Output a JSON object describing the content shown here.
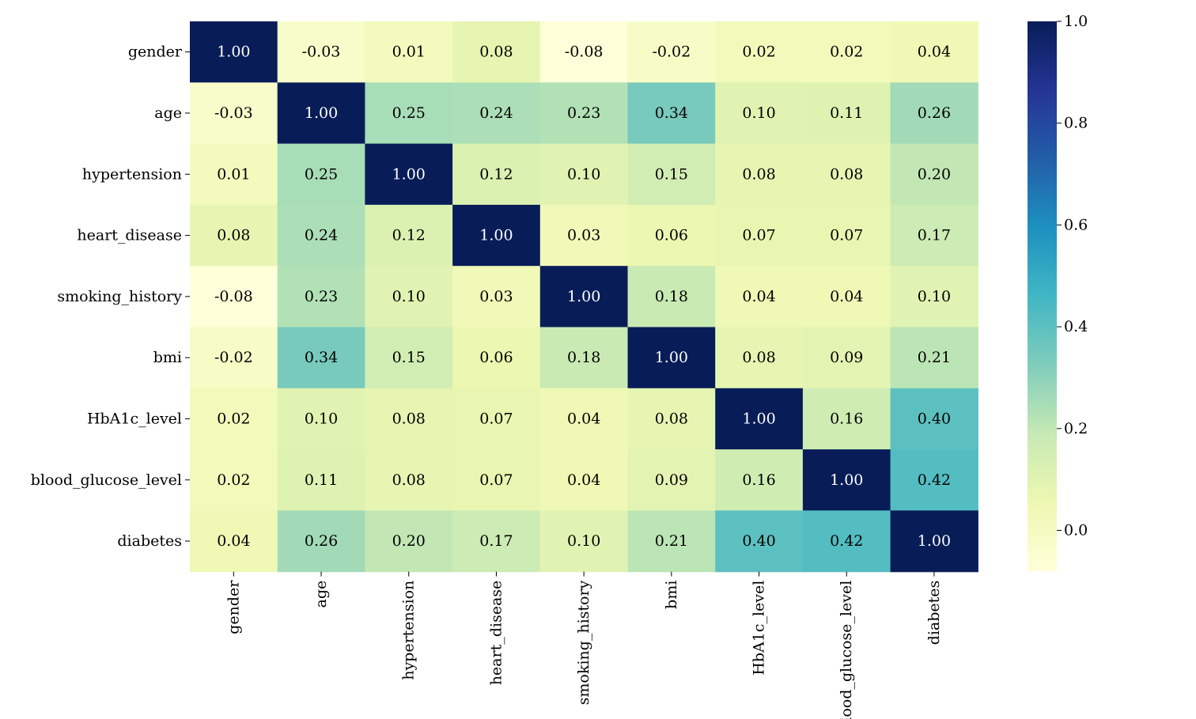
{
  "chart_data": {
    "type": "heatmap",
    "title": "",
    "xlabel": "",
    "ylabel": "",
    "labels": [
      "gender",
      "age",
      "hypertension",
      "heart_disease",
      "smoking_history",
      "bmi",
      "HbA1c_level",
      "blood_glucose_level",
      "diabetes"
    ],
    "matrix": [
      [
        1.0,
        -0.03,
        0.01,
        0.08,
        -0.08,
        -0.02,
        0.02,
        0.02,
        0.04
      ],
      [
        -0.03,
        1.0,
        0.25,
        0.24,
        0.23,
        0.34,
        0.1,
        0.11,
        0.26
      ],
      [
        0.01,
        0.25,
        1.0,
        0.12,
        0.1,
        0.15,
        0.08,
        0.08,
        0.2
      ],
      [
        0.08,
        0.24,
        0.12,
        1.0,
        0.03,
        0.06,
        0.07,
        0.07,
        0.17
      ],
      [
        -0.08,
        0.23,
        0.1,
        0.03,
        1.0,
        0.18,
        0.04,
        0.04,
        0.1
      ],
      [
        -0.02,
        0.34,
        0.15,
        0.06,
        0.18,
        1.0,
        0.08,
        0.09,
        0.21
      ],
      [
        0.02,
        0.1,
        0.08,
        0.07,
        0.04,
        0.08,
        1.0,
        0.16,
        0.4
      ],
      [
        0.02,
        0.11,
        0.08,
        0.07,
        0.04,
        0.09,
        0.16,
        1.0,
        0.42
      ],
      [
        0.04,
        0.26,
        0.2,
        0.17,
        0.1,
        0.21,
        0.4,
        0.42,
        1.0
      ]
    ],
    "annotation_format": "0.00",
    "colormap": "YlGnBu",
    "colormap_stops": [
      "#ffffd9",
      "#edf8b1",
      "#c7e9b4",
      "#7fcdbb",
      "#41b6c4",
      "#1d91c0",
      "#225ea8",
      "#253494",
      "#081d58"
    ],
    "vmin": -0.08,
    "vmax": 1.0,
    "colorbar": {
      "ticks": [
        0.0,
        0.2,
        0.4,
        0.6,
        0.8,
        1.0
      ],
      "tick_labels": [
        "0.0",
        "0.2",
        "0.4",
        "0.6",
        "0.8",
        "1.0"
      ]
    }
  }
}
